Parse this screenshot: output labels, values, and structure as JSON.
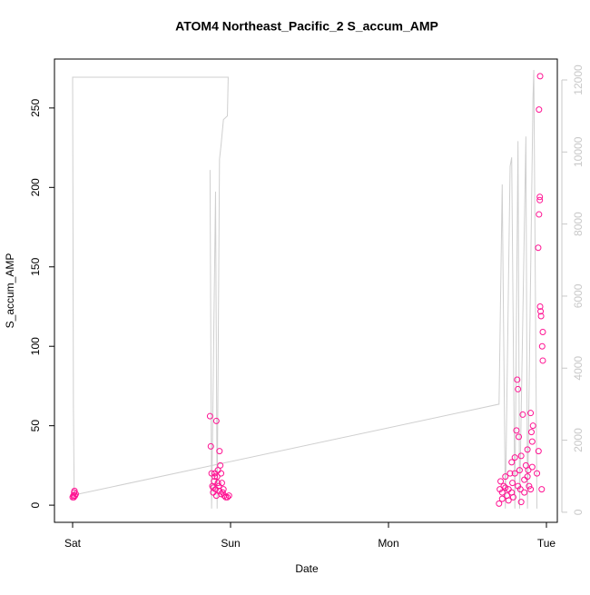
{
  "chart_data": {
    "type": "scatter",
    "title": "ATOM4 Northeast_Pacific_2 S_accum_AMP",
    "x_label": "Date",
    "y_label": "S_accum_AMP",
    "xlim": [
      -0.115,
      3.069
    ],
    "xticks": [
      {
        "value": 0,
        "label": "Sat"
      },
      {
        "value": 1,
        "label": "Sun"
      },
      {
        "value": 2,
        "label": "Mon"
      },
      {
        "value": 3,
        "label": "Tue"
      }
    ],
    "ylim": [
      -10.8,
      280.8
    ],
    "yticks": [
      0,
      50,
      100,
      150,
      200,
      250
    ],
    "y2lim": [
      -280,
      12580
    ],
    "y2ticks": [
      0,
      2000,
      4000,
      6000,
      8000,
      10000,
      12000
    ],
    "y2color": "#c8c8c8",
    "series": [
      {
        "type": "scatter",
        "color": "#ff1493",
        "x": [
          0.0,
          0.005,
          0.01,
          0.012,
          0.015,
          0.02,
          0.008,
          0.87,
          0.875,
          0.88,
          0.885,
          0.89,
          0.895,
          0.9,
          0.905,
          0.91,
          0.915,
          0.92,
          0.925,
          0.93,
          0.935,
          0.94,
          0.945,
          0.95,
          0.955,
          0.96,
          0.97,
          0.98,
          0.99,
          0.94,
          0.93,
          0.92,
          0.91,
          0.9,
          0.89,
          2.7,
          2.705,
          2.71,
          2.72,
          2.73,
          2.74,
          2.75,
          2.76,
          2.77,
          2.78,
          2.785,
          2.79,
          2.8,
          2.81,
          2.815,
          2.82,
          2.825,
          2.83,
          2.835,
          2.84,
          2.85,
          2.86,
          2.87,
          2.88,
          2.885,
          2.89,
          2.9,
          2.905,
          2.91,
          2.915,
          2.948,
          2.953,
          2.953,
          2.958,
          2.958,
          2.96,
          2.963,
          2.966,
          2.973,
          2.977,
          2.977,
          2.96,
          2.91,
          2.9,
          2.88,
          2.86,
          2.84,
          2.82,
          2.8,
          2.78,
          2.76,
          2.74,
          2.72,
          2.95,
          2.94,
          2.97
        ],
        "values": [
          5,
          6,
          8,
          9,
          6,
          7,
          5,
          56,
          37,
          20,
          12,
          8,
          15,
          20,
          10,
          53,
          18,
          22,
          12,
          34,
          25,
          20,
          14,
          8,
          10,
          6,
          5,
          5,
          6,
          7,
          9,
          14,
          6,
          18,
          11,
          1,
          10,
          15,
          8,
          12,
          18,
          6,
          10,
          20,
          27,
          14,
          5,
          30,
          47,
          79,
          73,
          43,
          22,
          10,
          31,
          57,
          16,
          25,
          35,
          22,
          12,
          58,
          46,
          40,
          50,
          162,
          249,
          183,
          192,
          194,
          125,
          122,
          119,
          100,
          109,
          91,
          270,
          24,
          10,
          18,
          8,
          2,
          12,
          20,
          8,
          3,
          11,
          4,
          34,
          20,
          10
        ]
      },
      {
        "type": "line",
        "axis": "y2",
        "color": "#cfcfcf",
        "x": [
          0.87,
          0.88,
          0.905,
          0.915,
          0.93,
          0.94,
          0.955,
          0.98,
          0.985,
          0.0,
          0.005,
          0.01,
          2.7,
          2.72,
          2.74,
          2.77,
          2.78,
          2.8,
          2.82,
          2.83,
          2.87,
          2.88,
          2.915,
          2.92,
          2.94
        ],
        "values": [
          9500,
          100,
          8900,
          100,
          9800,
          10200,
          10900,
          11000,
          12075,
          12075,
          2900,
          480,
          3000,
          9100,
          100,
          9600,
          9850,
          100,
          10300,
          100,
          10430,
          100,
          11500,
          12276,
          100
        ]
      }
    ]
  }
}
